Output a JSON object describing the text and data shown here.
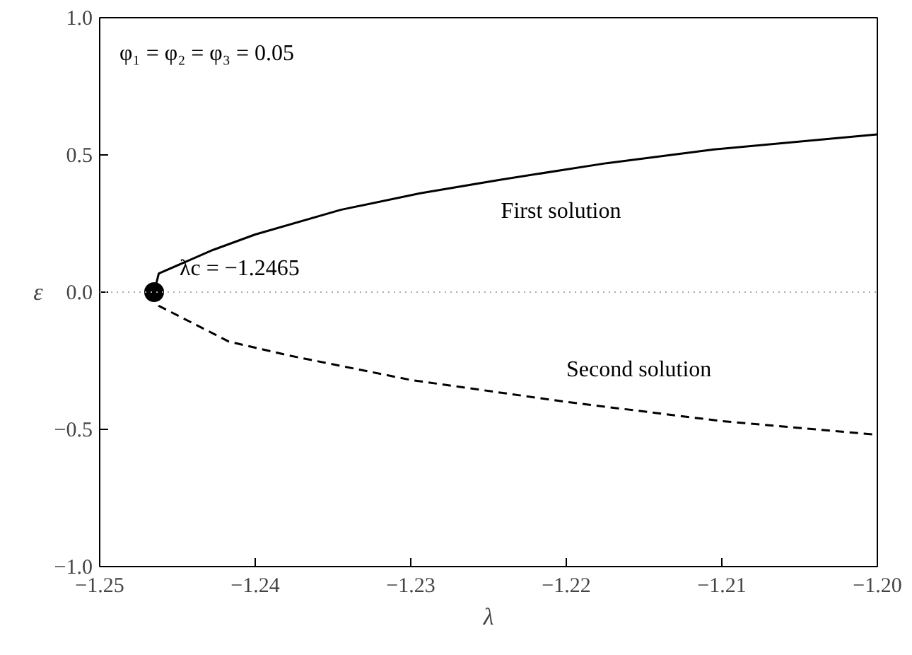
{
  "chart_data": {
    "type": "line",
    "xlabel": "λ",
    "ylabel": "ε",
    "xlim": [
      -1.25,
      -1.2
    ],
    "ylim": [
      -1.0,
      1.0
    ],
    "xticks": [
      {
        "value": -1.25,
        "label": "−1.25"
      },
      {
        "value": -1.24,
        "label": "−1.24"
      },
      {
        "value": -1.23,
        "label": "−1.23"
      },
      {
        "value": -1.22,
        "label": "−1.22"
      },
      {
        "value": -1.21,
        "label": "−1.21"
      },
      {
        "value": -1.2,
        "label": "−1.20"
      }
    ],
    "yticks": [
      {
        "value": -1.0,
        "label": "−1.0"
      },
      {
        "value": -0.5,
        "label": "−0.5"
      },
      {
        "value": 0.0,
        "label": "0.0"
      },
      {
        "value": 0.5,
        "label": "0.5"
      },
      {
        "value": 1.0,
        "label": "1.0"
      }
    ],
    "grid": false,
    "legend": false,
    "series": [
      {
        "name": "First solution",
        "color": "#000000",
        "line_style": "solid",
        "x": [
          -1.2465,
          -1.2462,
          -1.2427,
          -1.24,
          -1.2345,
          -1.2294,
          -1.2242,
          -1.2174,
          -1.2105,
          -1.2
        ],
        "values": [
          0,
          0.068,
          0.154,
          0.21,
          0.3,
          0.36,
          0.41,
          0.47,
          0.52,
          0.575
        ]
      },
      {
        "name": "Second solution",
        "color": "#000000",
        "line_style": "dashed",
        "x": [
          -1.2465,
          -1.2462,
          -1.2417,
          -1.2379,
          -1.23,
          -1.22,
          -1.21,
          -1.2
        ],
        "values": [
          0,
          -0.05,
          -0.18,
          -0.23,
          -0.32,
          -0.4,
          -0.47,
          -0.52
        ]
      },
      {
        "type": "scatter",
        "marker": "circle",
        "color": "#000000",
        "x": [
          -1.2465
        ],
        "values": [
          0
        ]
      }
    ],
    "ref_lines": [
      {
        "axis": "y",
        "value": 0,
        "color": "#aaaaaa",
        "line_style": "dotted"
      }
    ],
    "annotations": [
      "φ₁ = φ₂ = φ₃ = 0.05",
      {
        "text": "λc = −1.2465",
        "x": -1.2465,
        "y": 0
      }
    ]
  }
}
